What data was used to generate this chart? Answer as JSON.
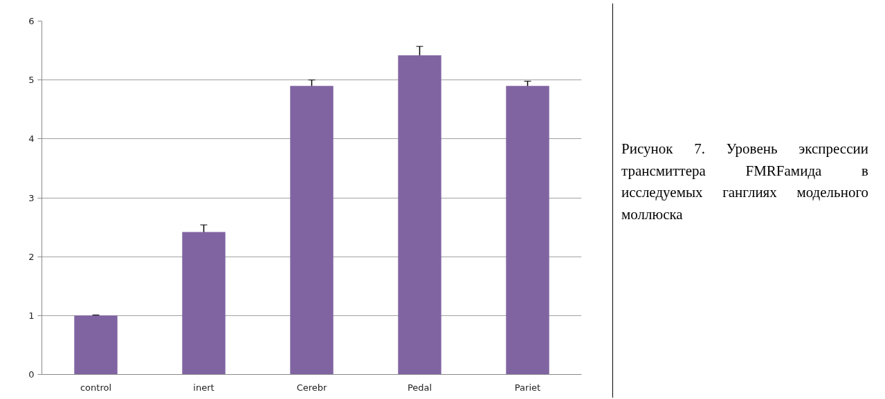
{
  "chart_data": {
    "type": "bar",
    "categories": [
      "control",
      "inert",
      "Cerebr",
      "Pedal",
      "Pariet"
    ],
    "values": [
      1.0,
      2.42,
      4.9,
      5.42,
      4.9
    ],
    "errors": [
      0.01,
      0.12,
      0.1,
      0.15,
      0.08
    ],
    "color": "#8064a2",
    "ylim": [
      0,
      6
    ],
    "yticks": [
      0,
      1,
      2,
      3,
      4,
      5,
      6
    ],
    "grid": "y",
    "annotations": [
      "Рисунок 7. Уровень экспрессии трансмиттера FMRFамида в исследуемых ганглиях модельного моллюска"
    ]
  }
}
